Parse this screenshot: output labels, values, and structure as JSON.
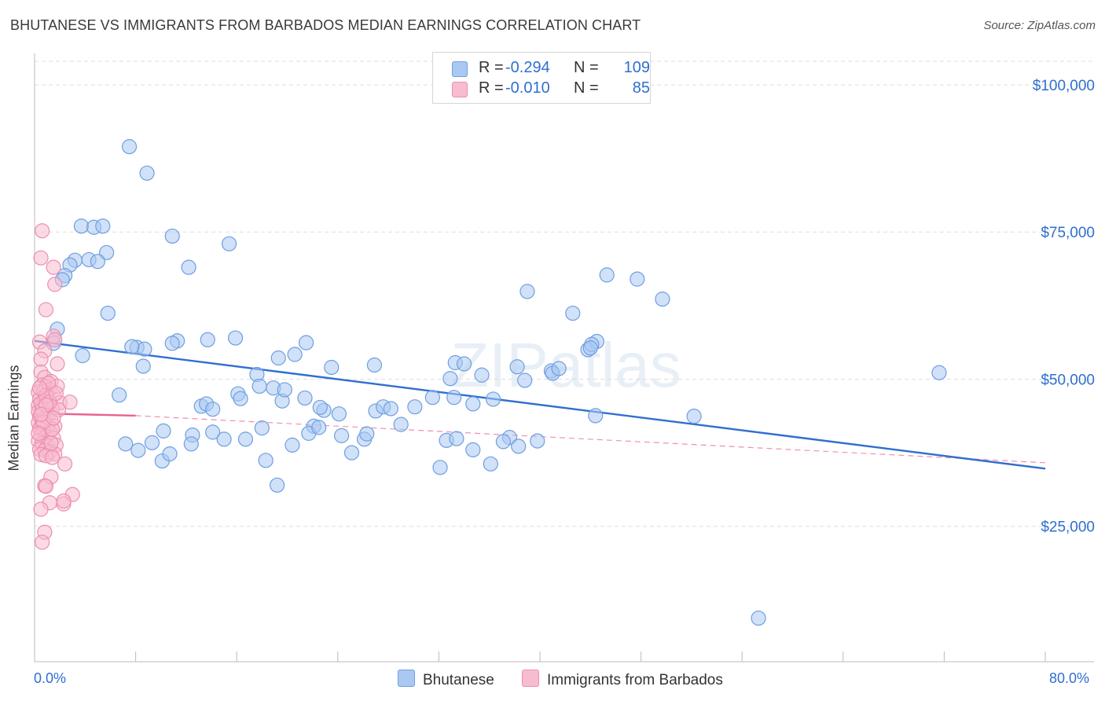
{
  "title": "BHUTANESE VS IMMIGRANTS FROM BARBADOS MEDIAN EARNINGS CORRELATION CHART",
  "source": "Source: ZipAtlas.com",
  "watermark": "ZIPatlas",
  "legend": {
    "r_label": "R =",
    "n_label": "N =",
    "rows": [
      {
        "r": "-0.294",
        "n": "109",
        "color": "#a9c8f2",
        "edge": "#6e9fe0"
      },
      {
        "r": "-0.010",
        "n": "85",
        "color": "#f8bcd0",
        "edge": "#ec8fae"
      }
    ]
  },
  "bottom_legend": [
    {
      "label": "Bhutanese",
      "color": "#a9c8f2",
      "edge": "#6e9fe0"
    },
    {
      "label": "Immigrants from Barbados",
      "color": "#f8bcd0",
      "edge": "#ec8fae"
    }
  ],
  "chart_data": {
    "type": "scatter",
    "title": "BHUTANESE VS IMMIGRANTS FROM BARBADOS MEDIAN EARNINGS CORRELATION CHART",
    "xlabel": "",
    "ylabel": "Median Earnings",
    "xlim": [
      0,
      80
    ],
    "ylim": [
      2000,
      104000
    ],
    "x_tick_labels": [
      "0.0%",
      "80.0%"
    ],
    "y_ticks": [
      25000,
      50000,
      75000,
      100000
    ],
    "y_tick_labels": [
      "$25,000",
      "$50,000",
      "$75,000",
      "$100,000"
    ],
    "grid": true,
    "legend_position": "top-center",
    "colors": {
      "blue": "#2f6fcf",
      "pink": "#e8628f"
    },
    "series": [
      {
        "name": "Bhutanese",
        "color": "#a9c8f2",
        "edge": "#6e9fe0",
        "trend": {
          "x": [
            0,
            80
          ],
          "y": [
            56500,
            34800
          ],
          "style": "solid",
          "color": "#2f6fcf"
        },
        "points": [
          [
            7.5,
            89.5
          ],
          [
            8.9,
            85.0
          ],
          [
            3.7,
            76.0
          ],
          [
            4.7,
            75.8
          ],
          [
            5.4,
            76.0
          ],
          [
            10.9,
            74.3
          ],
          [
            15.4,
            73.0
          ],
          [
            5.7,
            71.5
          ],
          [
            3.2,
            70.2
          ],
          [
            2.8,
            69.4
          ],
          [
            4.3,
            70.3
          ],
          [
            5.0,
            70.0
          ],
          [
            12.2,
            69.0
          ],
          [
            2.4,
            67.6
          ],
          [
            2.2,
            66.9
          ],
          [
            39.0,
            64.9
          ],
          [
            45.3,
            67.7
          ],
          [
            47.7,
            67.0
          ],
          [
            42.6,
            61.2
          ],
          [
            5.8,
            61.2
          ],
          [
            49.7,
            63.6
          ],
          [
            1.8,
            58.5
          ],
          [
            1.5,
            56.1
          ],
          [
            8.1,
            55.4
          ],
          [
            8.7,
            55.1
          ],
          [
            11.3,
            56.5
          ],
          [
            13.7,
            56.7
          ],
          [
            15.9,
            57.0
          ],
          [
            10.9,
            56.1
          ],
          [
            7.7,
            55.5
          ],
          [
            19.3,
            53.6
          ],
          [
            20.6,
            54.2
          ],
          [
            21.5,
            56.2
          ],
          [
            26.9,
            52.4
          ],
          [
            23.5,
            52.0
          ],
          [
            33.3,
            52.8
          ],
          [
            34.0,
            52.6
          ],
          [
            40.9,
            51.4
          ],
          [
            43.8,
            55.0
          ],
          [
            44.5,
            56.4
          ],
          [
            44.1,
            55.9
          ],
          [
            38.2,
            52.1
          ],
          [
            38.8,
            49.8
          ],
          [
            32.9,
            50.1
          ],
          [
            35.4,
            50.7
          ],
          [
            41.0,
            51.0
          ],
          [
            41.5,
            51.8
          ],
          [
            44.0,
            55.3
          ],
          [
            12.5,
            40.5
          ],
          [
            3.8,
            54.0
          ],
          [
            8.6,
            52.2
          ],
          [
            6.7,
            47.3
          ],
          [
            13.2,
            45.4
          ],
          [
            13.6,
            45.8
          ],
          [
            14.1,
            44.9
          ],
          [
            16.1,
            47.5
          ],
          [
            16.3,
            46.7
          ],
          [
            17.6,
            50.8
          ],
          [
            17.8,
            48.8
          ],
          [
            18.9,
            48.5
          ],
          [
            19.6,
            46.3
          ],
          [
            19.8,
            48.2
          ],
          [
            21.4,
            46.8
          ],
          [
            22.1,
            42.0
          ],
          [
            22.9,
            44.7
          ],
          [
            24.1,
            44.1
          ],
          [
            27.0,
            44.6
          ],
          [
            27.6,
            45.3
          ],
          [
            28.2,
            45.0
          ],
          [
            29.0,
            42.3
          ],
          [
            30.1,
            45.3
          ],
          [
            31.5,
            46.9
          ],
          [
            32.6,
            39.6
          ],
          [
            33.4,
            39.9
          ],
          [
            34.7,
            45.8
          ],
          [
            36.3,
            46.6
          ],
          [
            37.6,
            40.1
          ],
          [
            38.3,
            38.6
          ],
          [
            39.8,
            39.5
          ],
          [
            52.2,
            43.7
          ],
          [
            44.4,
            43.8
          ],
          [
            37.1,
            39.4
          ],
          [
            33.2,
            46.9
          ],
          [
            7.2,
            39.0
          ],
          [
            8.2,
            37.9
          ],
          [
            9.3,
            39.2
          ],
          [
            10.2,
            41.2
          ],
          [
            10.1,
            36.1
          ],
          [
            10.7,
            37.3
          ],
          [
            14.1,
            41.0
          ],
          [
            15.0,
            39.8
          ],
          [
            16.7,
            39.8
          ],
          [
            12.4,
            39.0
          ],
          [
            18.0,
            41.7
          ],
          [
            20.4,
            38.8
          ],
          [
            21.7,
            40.8
          ],
          [
            22.5,
            41.8
          ],
          [
            24.3,
            40.4
          ],
          [
            25.1,
            37.5
          ],
          [
            26.1,
            39.8
          ],
          [
            26.3,
            40.7
          ],
          [
            18.3,
            36.2
          ],
          [
            19.2,
            32.0
          ],
          [
            22.6,
            45.2
          ],
          [
            32.1,
            35.0
          ],
          [
            34.7,
            38.0
          ],
          [
            36.1,
            35.6
          ],
          [
            71.6,
            51.1
          ],
          [
            57.3,
            9.4
          ]
        ]
      },
      {
        "name": "Immigrants from Barbados",
        "color": "#f8bcd0",
        "edge": "#ec8fae",
        "trend": {
          "x": [
            0,
            8
          ],
          "y": [
            44200,
            43800
          ],
          "style": "solid",
          "color": "#e8628f",
          "ext_x": [
            8,
            80
          ],
          "ext_y": [
            43800,
            35800
          ]
        },
        "points": [
          [
            0.6,
            75.2
          ],
          [
            0.5,
            70.6
          ],
          [
            1.5,
            69.0
          ],
          [
            1.6,
            66.1
          ],
          [
            0.9,
            61.8
          ],
          [
            1.5,
            57.3
          ],
          [
            0.4,
            56.3
          ],
          [
            1.6,
            56.7
          ],
          [
            0.8,
            54.8
          ],
          [
            0.5,
            53.4
          ],
          [
            1.8,
            52.6
          ],
          [
            0.5,
            51.2
          ],
          [
            0.8,
            50.3
          ],
          [
            1.3,
            49.6
          ],
          [
            0.6,
            49.0
          ],
          [
            0.9,
            48.7
          ],
          [
            1.2,
            48.2
          ],
          [
            0.3,
            47.8
          ],
          [
            0.7,
            47.9
          ],
          [
            1.0,
            47.4
          ],
          [
            1.5,
            47.3
          ],
          [
            0.4,
            46.6
          ],
          [
            0.8,
            46.7
          ],
          [
            1.1,
            46.2
          ],
          [
            2.0,
            46.0
          ],
          [
            2.8,
            46.1
          ],
          [
            0.3,
            45.5
          ],
          [
            0.6,
            45.3
          ],
          [
            1.0,
            45.2
          ],
          [
            1.4,
            45.0
          ],
          [
            0.3,
            44.5
          ],
          [
            0.7,
            44.2
          ],
          [
            1.1,
            44.0
          ],
          [
            0.4,
            43.6
          ],
          [
            0.8,
            43.3
          ],
          [
            1.3,
            43.0
          ],
          [
            0.3,
            42.6
          ],
          [
            0.6,
            42.3
          ],
          [
            1.0,
            42.1
          ],
          [
            1.6,
            42.0
          ],
          [
            0.4,
            41.6
          ],
          [
            0.7,
            41.3
          ],
          [
            1.2,
            41.0
          ],
          [
            0.5,
            40.5
          ],
          [
            0.9,
            40.2
          ],
          [
            1.5,
            40.0
          ],
          [
            0.3,
            39.5
          ],
          [
            0.6,
            39.1
          ],
          [
            1.0,
            38.7
          ],
          [
            1.7,
            38.8
          ],
          [
            0.4,
            38.1
          ],
          [
            0.8,
            37.9
          ],
          [
            1.2,
            37.6
          ],
          [
            1.6,
            37.3
          ],
          [
            0.5,
            37.2
          ],
          [
            0.9,
            37.0
          ],
          [
            1.4,
            36.7
          ],
          [
            2.4,
            35.6
          ],
          [
            1.3,
            33.4
          ],
          [
            0.8,
            31.9
          ],
          [
            0.9,
            31.8
          ],
          [
            3.0,
            30.4
          ],
          [
            1.2,
            29.0
          ],
          [
            2.3,
            28.8
          ],
          [
            2.3,
            29.3
          ],
          [
            0.5,
            27.9
          ],
          [
            0.8,
            24.0
          ],
          [
            0.6,
            22.3
          ],
          [
            1.4,
            41.5
          ],
          [
            0.6,
            43.0
          ],
          [
            1.9,
            44.8
          ],
          [
            0.5,
            45.9
          ],
          [
            1.8,
            48.8
          ],
          [
            1.1,
            49.3
          ],
          [
            0.9,
            47.2
          ],
          [
            0.6,
            44.8
          ],
          [
            1.2,
            46.1
          ],
          [
            0.4,
            48.5
          ],
          [
            0.7,
            42.7
          ],
          [
            1.5,
            43.4
          ],
          [
            0.3,
            40.8
          ],
          [
            0.9,
            45.6
          ],
          [
            1.3,
            39.1
          ],
          [
            1.7,
            47.6
          ],
          [
            0.5,
            44.0
          ]
        ]
      }
    ]
  }
}
